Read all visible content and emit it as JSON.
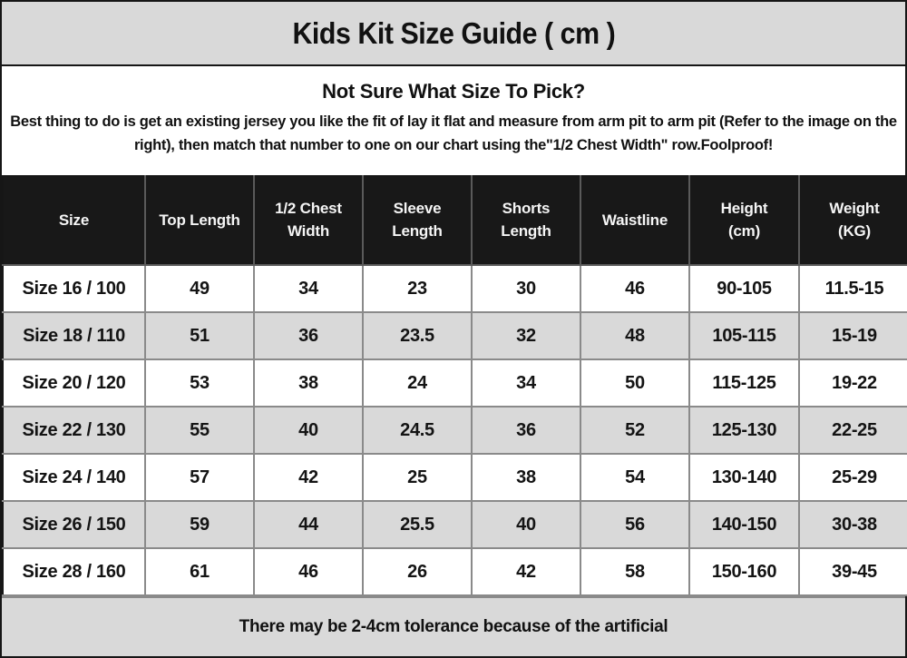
{
  "title": "Kids Kit Size Guide ( cm )",
  "intro": {
    "heading": "Not Sure What Size To Pick?",
    "body": "Best thing to do is get an existing jersey you like the fit of lay it flat and measure from arm pit to arm pit (Refer to the image on the right), then match that number to one on our chart using the\"1/2 Chest Width\" row.Foolproof!"
  },
  "table": {
    "columns": [
      "Size",
      "Top Length",
      "1/2 Chest Width",
      "Sleeve Length",
      "Shorts Length",
      "Waistline",
      "Height (cm)",
      "Weight (KG)"
    ],
    "rows": [
      [
        "Size 16 / 100",
        "49",
        "34",
        "23",
        "30",
        "46",
        "90-105",
        "11.5-15"
      ],
      [
        "Size 18 / 110",
        "51",
        "36",
        "23.5",
        "32",
        "48",
        "105-115",
        "15-19"
      ],
      [
        "Size 20 / 120",
        "53",
        "38",
        "24",
        "34",
        "50",
        "115-125",
        "19-22"
      ],
      [
        "Size 22 / 130",
        "55",
        "40",
        "24.5",
        "36",
        "52",
        "125-130",
        "22-25"
      ],
      [
        "Size 24 / 140",
        "57",
        "42",
        "25",
        "38",
        "54",
        "130-140",
        "25-29"
      ],
      [
        "Size 26 / 150",
        "59",
        "44",
        "25.5",
        "40",
        "56",
        "140-150",
        "30-38"
      ],
      [
        "Size 28 / 160",
        "61",
        "46",
        "26",
        "42",
        "58",
        "150-160",
        "39-45"
      ]
    ]
  },
  "footer": "There may be 2-4cm tolerance because of the artificial",
  "colors": {
    "band_bg": "#d9d9d9",
    "header_bg": "#181818",
    "header_text": "#f5f5f5",
    "row_alt_bg": "#d9d9d9",
    "grid_line": "#8a8a8a",
    "outer_border": "#161616"
  }
}
